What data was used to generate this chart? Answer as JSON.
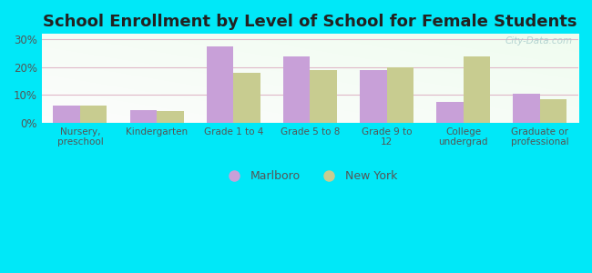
{
  "title": "School Enrollment by Level of School for Female Students",
  "categories": [
    "Nursery,\npreschool",
    "Kindergarten",
    "Grade 1 to 4",
    "Grade 5 to 8",
    "Grade 9 to\n12",
    "College\nundergrad",
    "Graduate or\nprofessional"
  ],
  "marlboro": [
    6.0,
    4.5,
    27.5,
    24.0,
    19.0,
    7.5,
    10.5
  ],
  "new_york": [
    6.0,
    4.2,
    18.0,
    19.0,
    20.0,
    24.0,
    8.5
  ],
  "marlboro_color": "#c8a0d8",
  "new_york_color": "#c8cc90",
  "background_outer": "#00e8f8",
  "ylim": [
    0,
    32
  ],
  "yticks": [
    0,
    10,
    20,
    30
  ],
  "title_fontsize": 13,
  "legend_labels": [
    "Marlboro",
    "New York"
  ],
  "watermark": "City-Data.com",
  "grid_color": "#e0b8c8",
  "tick_color": "#555555",
  "label_color": "#00c8e0"
}
